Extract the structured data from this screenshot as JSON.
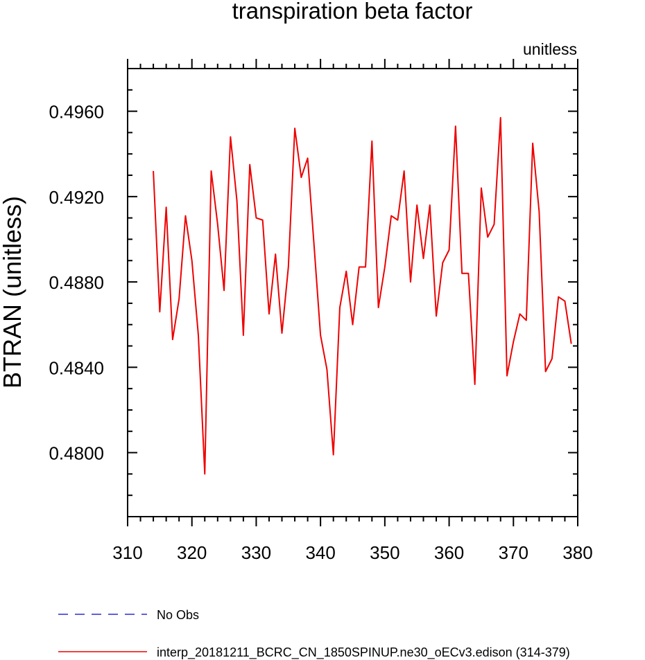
{
  "chart_data": {
    "type": "line",
    "title": "transpiration beta factor",
    "units_label": "unitless",
    "xlabel": "",
    "ylabel": "BTRAN  (unitless)",
    "xlim": [
      310,
      380
    ],
    "ylim": [
      0.477,
      0.498
    ],
    "x_ticks": [
      310,
      320,
      330,
      340,
      350,
      360,
      370,
      380
    ],
    "x_tick_labels": [
      "310",
      "320",
      "330",
      "340",
      "350",
      "360",
      "370",
      "380"
    ],
    "x_minor_step": 2,
    "y_ticks": [
      0.48,
      0.484,
      0.488,
      0.492,
      0.496
    ],
    "y_tick_labels": [
      "0.4800",
      "0.4840",
      "0.4880",
      "0.4920",
      "0.4960"
    ],
    "y_minor_step": 0.001,
    "grid": false,
    "legend_position": "bottom-left",
    "series": [
      {
        "name": "No Obs",
        "color": "#0000cc",
        "dash": "dashed",
        "x": [],
        "values": []
      },
      {
        "name": "interp_20181211_BCRC_CN_1850SPINUP.ne30_oECv3.edison (314-379)",
        "color": "#ee0000",
        "dash": "solid",
        "x": [
          314,
          315,
          316,
          317,
          318,
          319,
          320,
          321,
          322,
          323,
          324,
          325,
          326,
          327,
          328,
          329,
          330,
          331,
          332,
          333,
          334,
          335,
          336,
          337,
          338,
          339,
          340,
          341,
          342,
          343,
          344,
          345,
          346,
          347,
          348,
          349,
          350,
          351,
          352,
          353,
          354,
          355,
          356,
          357,
          358,
          359,
          360,
          361,
          362,
          363,
          364,
          365,
          366,
          367,
          368,
          369,
          370,
          371,
          372,
          373,
          374,
          375,
          376,
          377,
          378,
          379
        ],
        "values": [
          0.4932,
          0.4866,
          0.4915,
          0.4853,
          0.4872,
          0.4911,
          0.489,
          0.4855,
          0.479,
          0.4932,
          0.4907,
          0.4876,
          0.4948,
          0.4918,
          0.4855,
          0.4935,
          0.491,
          0.4909,
          0.4865,
          0.4893,
          0.4856,
          0.4887,
          0.4952,
          0.4929,
          0.4938,
          0.4897,
          0.4855,
          0.4839,
          0.4799,
          0.4868,
          0.4885,
          0.486,
          0.4887,
          0.4887,
          0.4946,
          0.4868,
          0.4887,
          0.4911,
          0.4909,
          0.4932,
          0.488,
          0.4916,
          0.4891,
          0.4916,
          0.4864,
          0.4889,
          0.4895,
          0.4953,
          0.4884,
          0.4884,
          0.4832,
          0.4924,
          0.4901,
          0.4907,
          0.4957,
          0.4836,
          0.4852,
          0.4865,
          0.4862,
          0.4945,
          0.4913,
          0.4838,
          0.4844,
          0.4873,
          0.4871,
          0.4851
        ]
      }
    ]
  }
}
